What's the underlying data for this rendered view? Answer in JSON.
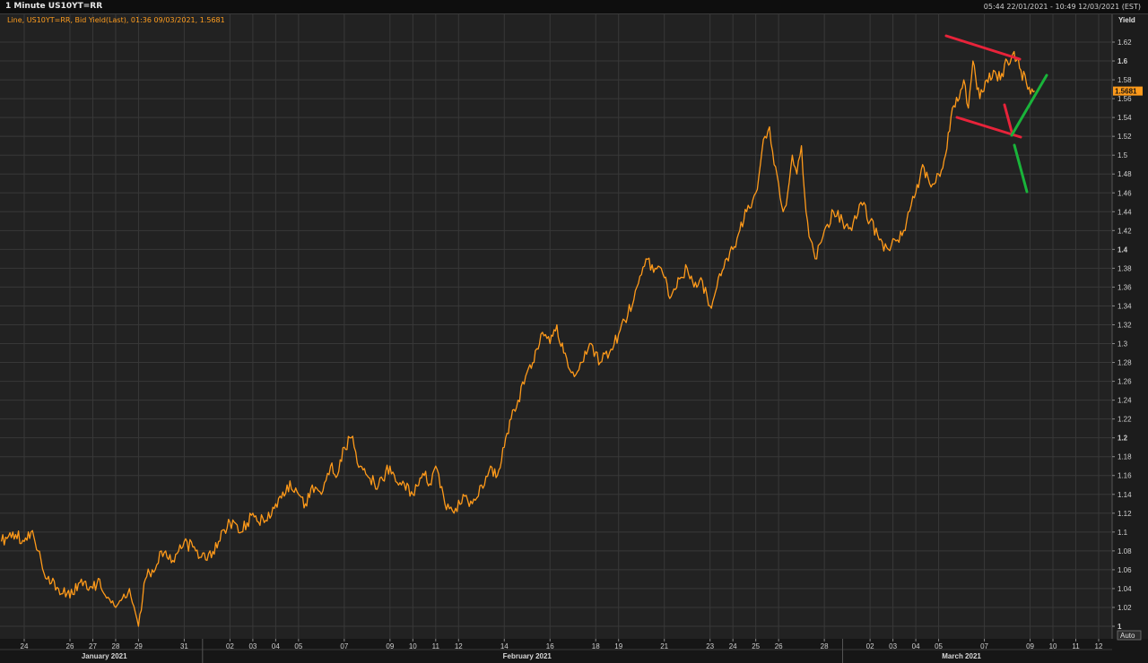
{
  "window": {
    "title": "1 Minute US10YT=RR",
    "date_range": "05:44 22/01/2021 - 10:49 12/03/2021 (EST)"
  },
  "legend": {
    "series_label": "Line, US10YT=RR, Bid Yield(Last), 01:36 09/03/2021, 1.5681"
  },
  "axis": {
    "y_title": "Yield",
    "auto_button": "Auto"
  },
  "colors": {
    "background": "#222222",
    "grid": "#383838",
    "line": "#ff9a1a",
    "red_annotation": "#e8233a",
    "green_annotation": "#19b43a",
    "last_value_tag": "#ff9a1a"
  },
  "chart_data": {
    "type": "line",
    "title": "1 Minute US10YT=RR",
    "xlabel": "",
    "ylabel": "Yield",
    "ylim": [
      0.99,
      1.63
    ],
    "grid": true,
    "y_ticks": [
      1,
      1.02,
      1.04,
      1.06,
      1.08,
      1.1,
      1.12,
      1.14,
      1.16,
      1.18,
      1.2,
      1.22,
      1.24,
      1.26,
      1.28,
      1.3,
      1.32,
      1.34,
      1.36,
      1.38,
      1.4,
      1.42,
      1.44,
      1.46,
      1.48,
      1.5,
      1.52,
      1.54,
      1.56,
      1.58,
      1.6,
      1.62
    ],
    "y_tick_labels": [
      "1",
      "1.02",
      "1.04",
      "1.06",
      "1.08",
      "1.1",
      "1.12",
      "1.14",
      "1.16",
      "1.18",
      "1.2",
      "1.22",
      "1.24",
      "1.26",
      "1.28",
      "1.3",
      "1.32",
      "1.34",
      "1.36",
      "1.38",
      "1.4",
      "1.42",
      "1.44",
      "1.46",
      "1.48",
      "1.5",
      "1.52",
      "1.54",
      "1.56",
      "1.58",
      "1.6",
      "1.62"
    ],
    "x_ticks": [
      {
        "label": "24",
        "day": 24
      },
      {
        "label": "26",
        "day": 26
      },
      {
        "label": "27",
        "day": 27
      },
      {
        "label": "28",
        "day": 28
      },
      {
        "label": "29",
        "day": 29
      },
      {
        "label": "31",
        "day": 31
      },
      {
        "label": "02",
        "day": 33
      },
      {
        "label": "03",
        "day": 34
      },
      {
        "label": "04",
        "day": 35
      },
      {
        "label": "05",
        "day": 36
      },
      {
        "label": "07",
        "day": 38
      },
      {
        "label": "09",
        "day": 40
      },
      {
        "label": "10",
        "day": 41
      },
      {
        "label": "11",
        "day": 42
      },
      {
        "label": "12",
        "day": 43
      },
      {
        "label": "14",
        "day": 45
      },
      {
        "label": "16",
        "day": 47
      },
      {
        "label": "18",
        "day": 49
      },
      {
        "label": "19",
        "day": 50
      },
      {
        "label": "21",
        "day": 52
      },
      {
        "label": "23",
        "day": 54
      },
      {
        "label": "24",
        "day": 55
      },
      {
        "label": "25",
        "day": 56
      },
      {
        "label": "26",
        "day": 57
      },
      {
        "label": "28",
        "day": 59
      },
      {
        "label": "02",
        "day": 61
      },
      {
        "label": "03",
        "day": 62
      },
      {
        "label": "04",
        "day": 63
      },
      {
        "label": "05",
        "day": 64
      },
      {
        "label": "07",
        "day": 66
      },
      {
        "label": "09",
        "day": 68
      },
      {
        "label": "10",
        "day": 69
      },
      {
        "label": "11",
        "day": 70
      },
      {
        "label": "12",
        "day": 71
      }
    ],
    "month_labels": [
      {
        "label": "January 2021",
        "day": 27.5
      },
      {
        "label": "February 2021",
        "day": 46
      },
      {
        "label": "March 2021",
        "day": 65
      }
    ],
    "month_boundaries": [
      31.8,
      59.8
    ],
    "series": [
      {
        "x": [
          23.0,
          23.5,
          24.0,
          24.3,
          24.6,
          25.0,
          25.5,
          26.0,
          26.5,
          27.0,
          27.3,
          27.6,
          28.0,
          28.3,
          28.6,
          29.0,
          29.3,
          29.6,
          30.0,
          30.5,
          31.0,
          31.5,
          32.0,
          32.5,
          33.0,
          33.5,
          34.0,
          34.5,
          35.0,
          35.5,
          36.0,
          36.3,
          36.6,
          37.0,
          37.4,
          37.7,
          38.0,
          38.3,
          38.7,
          39.0,
          39.5,
          40.0,
          40.5,
          41.0,
          41.5,
          41.8,
          42.0,
          42.4,
          42.8,
          43.2,
          43.6,
          44.0,
          44.4,
          44.7,
          45.0,
          45.3,
          45.6,
          46.0,
          46.3,
          46.6,
          47.0,
          47.3,
          47.6,
          48.0,
          48.4,
          48.8,
          49.2,
          49.6,
          50.0,
          50.4,
          50.8,
          51.2,
          51.6,
          52.0,
          52.3,
          52.6,
          53.0,
          53.3,
          53.6,
          54.0,
          54.3,
          54.6,
          55.0,
          55.3,
          55.6,
          56.0,
          56.2,
          56.4,
          56.6,
          56.8,
          57.0,
          57.2,
          57.4,
          57.6,
          57.8,
          58.0,
          58.2,
          58.4,
          58.6,
          59.0,
          59.4,
          59.8,
          60.2,
          60.6,
          61.0,
          61.4,
          61.8,
          62.2,
          62.6,
          63.0,
          63.3,
          63.6,
          64.0,
          64.3,
          64.6,
          64.9,
          65.1,
          65.3,
          65.5,
          65.8,
          66.1,
          66.4,
          66.7,
          67.0,
          67.3,
          67.6,
          67.9,
          68.2
        ],
        "y": [
          1.09,
          1.1,
          1.09,
          1.1,
          1.08,
          1.05,
          1.04,
          1.03,
          1.05,
          1.04,
          1.05,
          1.03,
          1.02,
          1.03,
          1.04,
          1.0,
          1.05,
          1.06,
          1.08,
          1.07,
          1.09,
          1.08,
          1.07,
          1.09,
          1.11,
          1.1,
          1.12,
          1.11,
          1.13,
          1.15,
          1.14,
          1.13,
          1.15,
          1.14,
          1.17,
          1.16,
          1.19,
          1.2,
          1.17,
          1.16,
          1.15,
          1.17,
          1.15,
          1.14,
          1.16,
          1.15,
          1.17,
          1.13,
          1.12,
          1.14,
          1.13,
          1.15,
          1.17,
          1.16,
          1.19,
          1.22,
          1.24,
          1.27,
          1.28,
          1.31,
          1.3,
          1.32,
          1.29,
          1.27,
          1.28,
          1.3,
          1.28,
          1.29,
          1.31,
          1.33,
          1.36,
          1.39,
          1.38,
          1.37,
          1.35,
          1.37,
          1.38,
          1.36,
          1.37,
          1.34,
          1.36,
          1.38,
          1.4,
          1.42,
          1.44,
          1.46,
          1.49,
          1.52,
          1.53,
          1.49,
          1.47,
          1.44,
          1.46,
          1.5,
          1.48,
          1.51,
          1.44,
          1.41,
          1.39,
          1.42,
          1.44,
          1.43,
          1.42,
          1.45,
          1.43,
          1.41,
          1.4,
          1.41,
          1.43,
          1.46,
          1.49,
          1.47,
          1.48,
          1.5,
          1.55,
          1.56,
          1.58,
          1.55,
          1.6,
          1.56,
          1.58,
          1.59,
          1.58,
          1.6,
          1.61,
          1.59,
          1.57,
          1.5681
        ]
      }
    ],
    "last_value": "1.5681"
  }
}
